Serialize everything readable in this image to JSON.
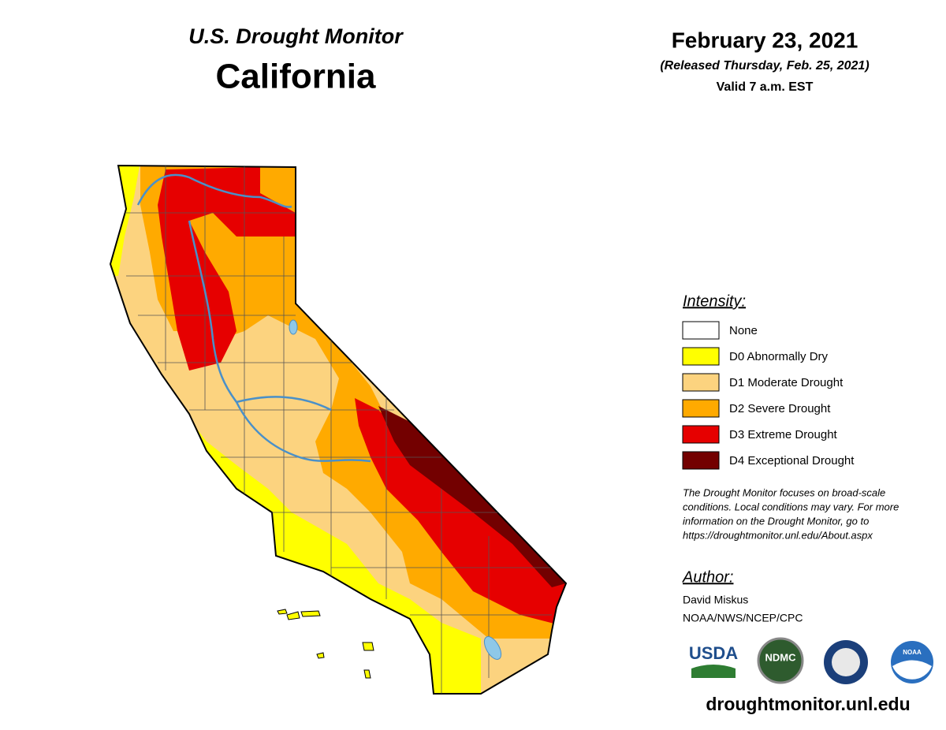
{
  "header": {
    "title": "U.S. Drought Monitor",
    "region": "California"
  },
  "date": {
    "date": "February 23, 2021",
    "released": "(Released Thursday, Feb. 25, 2021)",
    "valid": "Valid 7 a.m. EST"
  },
  "legend": {
    "title": "Intensity:",
    "items": [
      {
        "label": "None",
        "color": "#ffffff"
      },
      {
        "label": "D0 Abnormally Dry",
        "color": "#ffff00"
      },
      {
        "label": "D1 Moderate Drought",
        "color": "#fcd37f"
      },
      {
        "label": "D2 Severe Drought",
        "color": "#ffaa00"
      },
      {
        "label": "D3 Extreme Drought",
        "color": "#e60000"
      },
      {
        "label": "D4 Exceptional Drought",
        "color": "#730000"
      }
    ]
  },
  "note": [
    "The Drought Monitor focuses on broad-scale",
    "conditions. Local conditions may vary. For more",
    "information on the Drought Monitor, go to",
    "https://droughtmonitor.unl.edu/About.aspx"
  ],
  "author": {
    "title": "Author:",
    "name": "David Miskus",
    "org": "NOAA/NWS/NCEP/CPC"
  },
  "logos": [
    "USDA",
    "NDMC",
    "NOAA"
  ],
  "footer": "droughtmonitor.unl.edu"
}
